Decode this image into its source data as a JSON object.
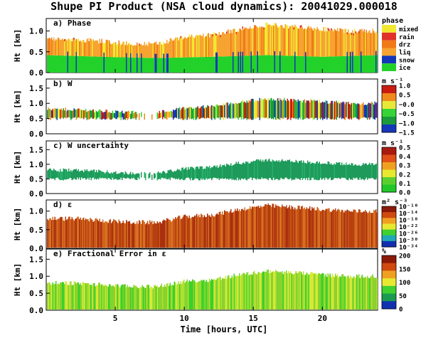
{
  "title": "Shupe PI Product (NSA cloud dynamics): 20041029.000018",
  "x_axis": {
    "label": "Time [hours, UTC]",
    "ticks": [
      "5",
      "10",
      "15",
      "20"
    ],
    "tick_values": [
      5,
      10,
      15,
      20
    ],
    "range": [
      0,
      24
    ]
  },
  "colors": {
    "phase": {
      "mixed": "#f2e830",
      "rain": "#e0312a",
      "drz": "#f07a18",
      "liq": "#f6a331",
      "snow": "#1437b8",
      "ice": "#22d22a"
    }
  },
  "chart_data": [
    {
      "type": "heatmap",
      "panel_label": "a) Phase",
      "ylabel": "Ht [km]",
      "yticks": [
        "0.0",
        "0.5",
        "1.0"
      ],
      "ytick_values": [
        0.0,
        0.5,
        1.0
      ],
      "ylim": [
        0,
        1.3
      ],
      "xlim": [
        0,
        24
      ],
      "colorbar_title": "phase",
      "legend": [
        "mixed",
        "rain",
        "drz",
        "liq",
        "snow",
        "ice"
      ],
      "cloud_top_km": {
        "x_hours": [
          0,
          2,
          4,
          6,
          8,
          10,
          12,
          14,
          16,
          18,
          20,
          22,
          24
        ],
        "values": [
          0.8,
          0.8,
          0.75,
          0.7,
          0.7,
          0.85,
          0.9,
          1.05,
          1.15,
          1.1,
          1.05,
          1.0,
          1.0
        ]
      },
      "ice_top_km": {
        "x_hours": [
          0,
          4,
          8,
          12,
          16,
          20,
          24
        ],
        "values": [
          0.42,
          0.38,
          0.35,
          0.38,
          0.42,
          0.38,
          0.42
        ]
      }
    },
    {
      "type": "heatmap",
      "panel_label": "b) W",
      "ylabel": "Ht [km]",
      "yticks": [
        "0.0",
        "0.5",
        "1.0",
        "1.5"
      ],
      "ytick_values": [
        0.0,
        0.5,
        1.0,
        1.5
      ],
      "ylim": [
        0,
        1.8
      ],
      "xlim": [
        0,
        24
      ],
      "colorbar_title": "m s⁻¹",
      "colorbar_ticks": [
        "1.0",
        "0.5",
        "−0.0",
        "−0.5",
        "−1.0",
        "−1.5"
      ],
      "colorbar_range": [
        -1.5,
        1.0
      ]
    },
    {
      "type": "heatmap",
      "panel_label": "c) W uncertainty",
      "ylabel": "Ht [km]",
      "yticks": [
        "0.0",
        "0.5",
        "1.0",
        "1.5"
      ],
      "ytick_values": [
        0.0,
        0.5,
        1.0,
        1.5
      ],
      "ylim": [
        0,
        1.8
      ],
      "xlim": [
        0,
        24
      ],
      "colorbar_title": "m s⁻¹",
      "colorbar_ticks": [
        "0.5",
        "0.4",
        "0.3",
        "0.2",
        "0.1",
        "0.0"
      ],
      "colorbar_range": [
        0.0,
        0.5
      ]
    },
    {
      "type": "heatmap",
      "panel_label": "d) ε",
      "ylabel": "Ht [km]",
      "yticks": [
        "0.0",
        "0.5",
        "1.0"
      ],
      "ytick_values": [
        0.0,
        0.5,
        1.0
      ],
      "ylim": [
        0,
        1.3
      ],
      "xlim": [
        0,
        24
      ],
      "colorbar_title": "m² s⁻³",
      "colorbar_ticks": [
        "10⁻¹⁰",
        "10⁻¹⁴",
        "10⁻¹⁸",
        "10⁻²²",
        "10⁻²⁶",
        "10⁻³⁰",
        "10⁻³⁴"
      ]
    },
    {
      "type": "heatmap",
      "panel_label": "e) Fractional Error in ε",
      "ylabel": "Ht [km]",
      "yticks": [
        "0.0",
        "0.5",
        "1.0",
        "1.5"
      ],
      "ytick_values": [
        0.0,
        0.5,
        1.0,
        1.5
      ],
      "ylim": [
        0,
        1.8
      ],
      "xlim": [
        0,
        24
      ],
      "colorbar_title": "%",
      "colorbar_ticks": [
        "200",
        "150",
        "100",
        "50",
        "0"
      ],
      "colorbar_range": [
        0,
        200
      ]
    }
  ]
}
